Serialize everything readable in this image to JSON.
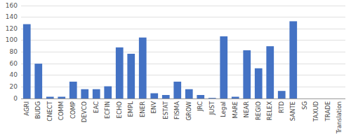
{
  "chart_data": {
    "type": "bar",
    "categories": [
      "AGRI",
      "BUDG",
      "CNECT",
      "COMM",
      "COMP",
      "DEVCO",
      "EAC",
      "ECFIN",
      "ECHO",
      "EMPL",
      "ENER",
      "ENV",
      "ESTAT",
      "FISMA",
      "GROW",
      "JRC",
      "JUST",
      "Legal",
      "MARE",
      "NEAR",
      "REGIO",
      "RELEX",
      "RTD",
      "SANTE",
      "SG",
      "TAXUD",
      "TRADE",
      "Translation"
    ],
    "values": [
      128,
      60,
      3,
      3,
      29,
      16,
      16,
      21,
      88,
      77,
      105,
      9,
      6,
      29,
      16,
      6,
      1,
      107,
      3,
      83,
      52,
      90,
      13,
      133,
      0,
      0,
      0,
      0
    ],
    "color": "#4472C4",
    "ylim": [
      0,
      160
    ],
    "yticks": [
      0,
      20,
      40,
      60,
      80,
      100,
      120,
      140,
      160
    ],
    "grid": true
  }
}
